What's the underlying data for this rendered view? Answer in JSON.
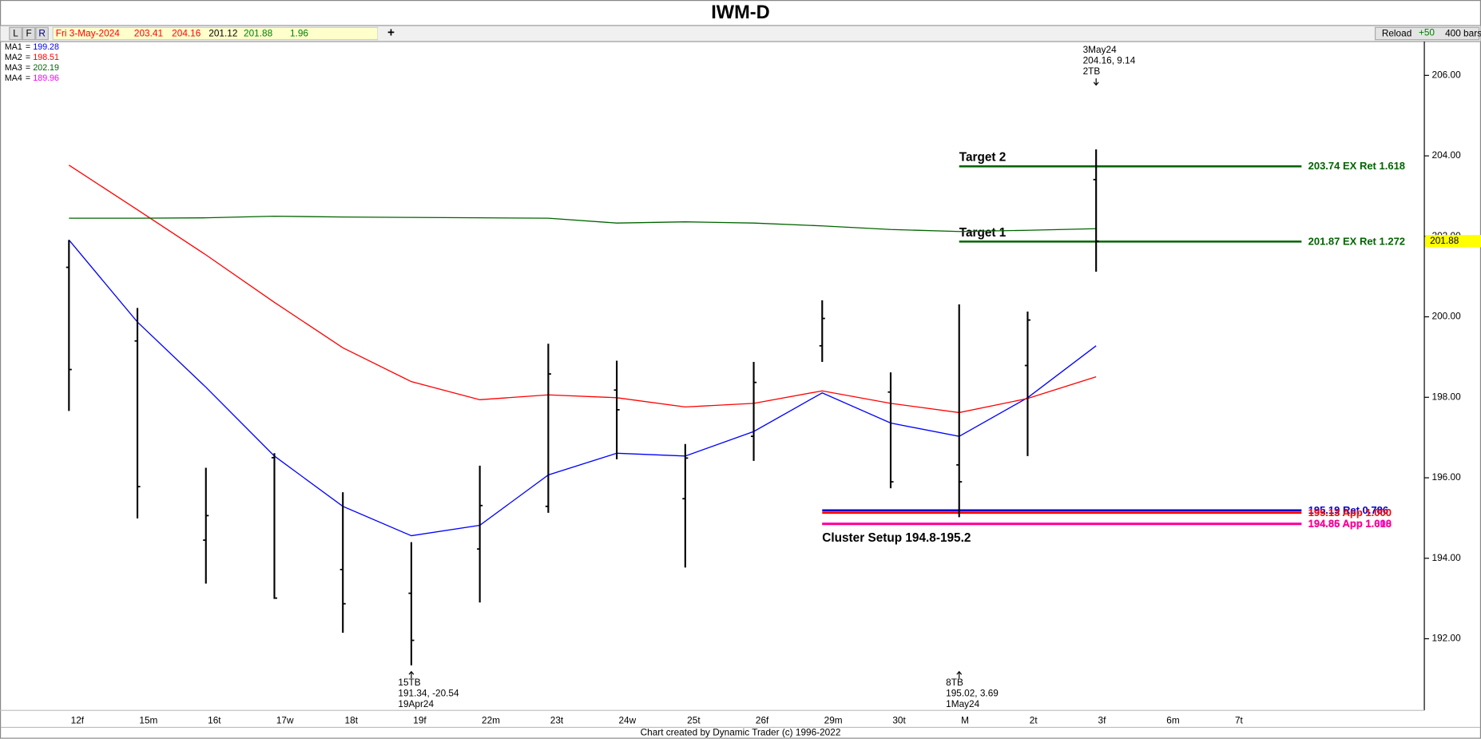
{
  "header": {
    "title": "IWM-D"
  },
  "toolbar": {
    "buttons": [
      "L",
      "F",
      "R"
    ],
    "date": "Fri 3-May-2024",
    "open": 203.41,
    "high": 204.16,
    "low": 201.12,
    "close": 201.88,
    "change": 1.96,
    "add": "+",
    "reload": "Reload",
    "step": "+50",
    "bars": "400 bars"
  },
  "chart_data": {
    "type": "ohlc",
    "categories": [
      "12f",
      "15m",
      "16t",
      "17w",
      "18t",
      "19f",
      "22m",
      "23t",
      "24w",
      "25t",
      "26f",
      "29m",
      "30t",
      "M",
      "2t",
      "3f",
      "6m",
      "7t"
    ],
    "open": [
      201.23,
      199.4,
      194.45,
      196.5,
      193.72,
      193.13,
      194.23,
      195.29,
      198.18,
      195.48,
      197.03,
      199.28,
      198.13,
      196.32,
      198.79,
      203.41,
      null,
      null
    ],
    "high": [
      201.91,
      200.22,
      196.25,
      196.61,
      195.64,
      194.4,
      196.3,
      199.33,
      198.91,
      196.84,
      198.88,
      200.41,
      198.62,
      200.31,
      200.13,
      204.16,
      null,
      null
    ],
    "low": [
      197.66,
      194.99,
      193.37,
      192.99,
      192.15,
      191.34,
      192.9,
      195.13,
      196.46,
      193.77,
      196.42,
      198.88,
      195.74,
      195.02,
      196.54,
      201.12,
      null,
      null
    ],
    "close": [
      198.69,
      195.78,
      195.06,
      193.01,
      192.87,
      191.96,
      195.31,
      198.58,
      197.69,
      196.49,
      198.37,
      199.96,
      195.9,
      195.9,
      199.92,
      201.88,
      null,
      null
    ],
    "color": "#000000",
    "ylim": [
      190.22,
      206.84
    ],
    "yticks": [
      {
        "value": 192,
        "label": "192.00"
      },
      {
        "value": 194,
        "label": "194.00"
      },
      {
        "value": 196,
        "label": "196.00"
      },
      {
        "value": 198,
        "label": "198.00"
      },
      {
        "value": 200,
        "label": "200.00"
      },
      {
        "value": 202,
        "label": "202.00"
      },
      {
        "value": 204,
        "label": "204.00"
      },
      {
        "value": 206,
        "label": "206.00"
      }
    ],
    "legend_separator": "=",
    "series": [
      {
        "name": "MA1",
        "color": "#0000ff",
        "legend_value": 199.28,
        "values": [
          201.91,
          199.87,
          198.25,
          196.54,
          195.29,
          194.56,
          194.82,
          196.07,
          196.61,
          196.54,
          197.15,
          198.11,
          197.36,
          197.03,
          197.99,
          199.28,
          null,
          null
        ]
      },
      {
        "name": "MA2",
        "color": "#ff0000",
        "legend_value": 198.51,
        "values": [
          203.77,
          202.66,
          201.54,
          200.36,
          199.23,
          198.39,
          197.94,
          198.06,
          197.99,
          197.76,
          197.85,
          198.16,
          197.85,
          197.62,
          197.97,
          198.51,
          null,
          null
        ]
      },
      {
        "name": "MA3",
        "color": "#006400",
        "legend_value": 202.19,
        "values": [
          202.45,
          202.45,
          202.46,
          202.5,
          202.48,
          202.47,
          202.46,
          202.45,
          202.33,
          202.36,
          202.33,
          202.26,
          202.17,
          202.12,
          202.15,
          202.19,
          null,
          null
        ]
      },
      {
        "name": "MA4",
        "color": "#ff00ff",
        "legend_value": 189.96,
        "values": [
          null,
          null,
          null,
          null,
          null,
          null,
          null,
          null,
          null,
          null,
          null,
          null,
          null,
          null,
          null,
          null,
          null,
          null
        ]
      }
    ],
    "levels": [
      {
        "name": "Target 2",
        "value": 203.74,
        "label": "203.74 EX Ret 1.618",
        "color": "#006400",
        "start": 13
      },
      {
        "name": "Target 1",
        "value": 201.87,
        "label": "201.87 EX Ret 1.272",
        "color": "#006400",
        "start": 13
      },
      {
        "value": 195.19,
        "label": "195.19 Ret 0.786",
        "color": "#0000cc",
        "start": 11
      },
      {
        "value": 195.13,
        "label": "195.13 App 1.000",
        "color": "#ff0000",
        "start": 11
      },
      {
        "value": 194.86,
        "label": "194.86 App 1.000",
        "color": "#ff00ff",
        "start": 11
      },
      {
        "value": 194.85,
        "label": "194.85 App 1.618",
        "color": "#ff0080",
        "start": 11
      }
    ],
    "cluster": {
      "label": "Cluster Setup 194.8-195.2",
      "start": 11
    },
    "annotations": [
      {
        "index": 15,
        "position": "above",
        "lines": [
          "3May24",
          "204.16, 9.14",
          "2TB"
        ]
      },
      {
        "index": 5,
        "position": "below",
        "lines": [
          "15TB",
          "191.34, -20.54",
          "19Apr24"
        ]
      },
      {
        "index": 13,
        "position": "below",
        "lines": [
          "8TB",
          "195.02, 3.69",
          "1May24"
        ]
      }
    ],
    "last_price": 201.88,
    "last_price_color": "#ffff00"
  },
  "footer": "Chart created by Dynamic Trader  (c) 1996-2022"
}
